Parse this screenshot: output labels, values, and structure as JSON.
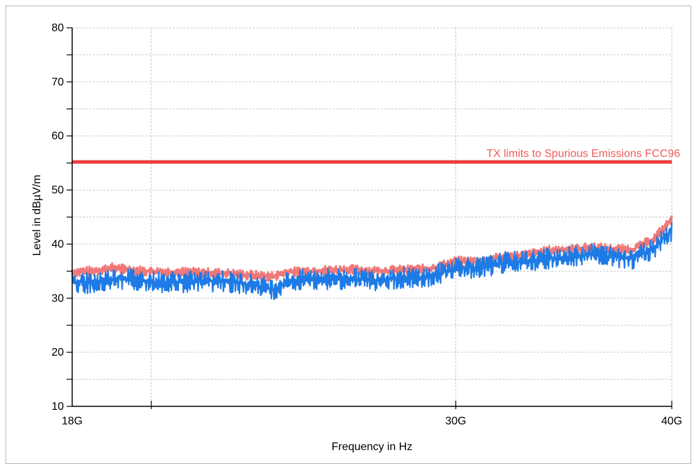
{
  "chart_data": {
    "type": "line",
    "title": "",
    "xlabel": "Frequency in Hz",
    "ylabel": "Level in dBµV/m",
    "x_scale": "log",
    "xlim": [
      18000000000,
      40000000000
    ],
    "ylim": [
      10,
      80
    ],
    "x_ticks": [
      {
        "value": 18000000000,
        "label": "18G"
      },
      {
        "value": 30000000000,
        "label": "30G"
      },
      {
        "value": 40000000000,
        "label": "40G"
      }
    ],
    "x_grid": [
      20000000000,
      30000000000,
      40000000000
    ],
    "y_ticks": [
      10,
      20,
      30,
      40,
      50,
      60,
      70,
      80
    ],
    "y_minor_step": 5,
    "grid": true,
    "limit_line": {
      "label": "TX limits to Spurious Emissions FCC96",
      "value": 55.2,
      "color": "#f03c3c"
    },
    "series": [
      {
        "color": "#f07878",
        "x": [
          18000000000,
          18500000000,
          19000000000,
          19500000000,
          20000000000,
          21000000000,
          22000000000,
          23000000000,
          23500000000,
          24000000000,
          25000000000,
          26000000000,
          27000000000,
          28000000000,
          29000000000,
          30000000000,
          31000000000,
          32000000000,
          33000000000,
          34000000000,
          35000000000,
          36000000000,
          37000000000,
          38000000000,
          39000000000,
          40000000000
        ],
        "values": [
          34.8,
          35.0,
          35.6,
          35.2,
          34.9,
          34.8,
          34.6,
          34.2,
          34.0,
          34.8,
          35.1,
          35.3,
          35.0,
          35.2,
          35.4,
          36.8,
          36.8,
          37.6,
          38.0,
          38.8,
          39.0,
          39.4,
          39.0,
          39.0,
          40.8,
          44.5
        ]
      },
      {
        "color": "#1e7be6",
        "x": [
          18000000000,
          18500000000,
          19000000000,
          19500000000,
          20000000000,
          21000000000,
          22000000000,
          23000000000,
          23500000000,
          24000000000,
          25000000000,
          26000000000,
          27000000000,
          28000000000,
          29000000000,
          30000000000,
          31000000000,
          32000000000,
          33000000000,
          34000000000,
          35000000000,
          36000000000,
          37000000000,
          38000000000,
          39000000000,
          40000000000
        ],
        "values": [
          33.0,
          32.8,
          33.6,
          33.6,
          33.0,
          33.0,
          33.2,
          32.4,
          31.6,
          33.0,
          33.6,
          33.6,
          33.4,
          33.8,
          33.8,
          35.8,
          35.6,
          36.6,
          36.8,
          37.4,
          37.6,
          38.2,
          37.6,
          37.4,
          39.2,
          42.6
        ]
      }
    ]
  }
}
